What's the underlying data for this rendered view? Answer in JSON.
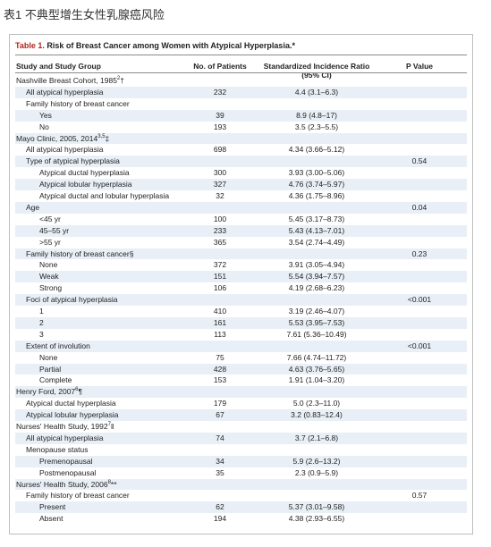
{
  "page_caption": "表1 不典型增生女性乳腺癌风险",
  "table": {
    "label": "Table 1.",
    "title": "Risk of Breast Cancer among Women with Atypical Hyperplasia.*",
    "headers": {
      "study": "Study and Study Group",
      "n": "No. of Patients",
      "sir": "Standardized Incidence Ratio (95% CI)",
      "p": "P Value"
    },
    "rows": [
      {
        "level": 0,
        "label": "Nashville Breast Cohort, 1985",
        "sup": "2",
        "tail": "†",
        "n": "",
        "sir": "",
        "p": ""
      },
      {
        "level": 1,
        "label": "All atypical hyperplasia",
        "sup": "",
        "tail": "",
        "n": "232",
        "sir": "4.4 (3.1–6.3)",
        "p": ""
      },
      {
        "level": 1,
        "label": "Family history of breast cancer",
        "sup": "",
        "tail": "",
        "n": "",
        "sir": "",
        "p": ""
      },
      {
        "level": 2,
        "label": "Yes",
        "sup": "",
        "tail": "",
        "n": "39",
        "sir": "8.9 (4.8–17)",
        "p": ""
      },
      {
        "level": 2,
        "label": "No",
        "sup": "",
        "tail": "",
        "n": "193",
        "sir": "3.5 (2.3–5.5)",
        "p": ""
      },
      {
        "level": 0,
        "label": "Mayo Clinic, 2005, 2014",
        "sup": "3,5",
        "tail": "‡",
        "n": "",
        "sir": "",
        "p": ""
      },
      {
        "level": 1,
        "label": "All atypical hyperplasia",
        "sup": "",
        "tail": "",
        "n": "698",
        "sir": "4.34 (3.66–5.12)",
        "p": ""
      },
      {
        "level": 1,
        "label": "Type of atypical hyperplasia",
        "sup": "",
        "tail": "",
        "n": "",
        "sir": "",
        "p": "0.54"
      },
      {
        "level": 2,
        "label": "Atypical ductal hyperplasia",
        "sup": "",
        "tail": "",
        "n": "300",
        "sir": "3.93 (3.00–5.06)",
        "p": ""
      },
      {
        "level": 2,
        "label": "Atypical lobular hyperplasia",
        "sup": "",
        "tail": "",
        "n": "327",
        "sir": "4.76 (3.74–5.97)",
        "p": ""
      },
      {
        "level": 2,
        "label": "Atypical ductal and lobular hyperplasia",
        "sup": "",
        "tail": "",
        "n": "32",
        "sir": "4.36 (1.75–8.96)",
        "p": ""
      },
      {
        "level": 1,
        "label": "Age",
        "sup": "",
        "tail": "",
        "n": "",
        "sir": "",
        "p": "0.04"
      },
      {
        "level": 2,
        "label": "<45 yr",
        "sup": "",
        "tail": "",
        "n": "100",
        "sir": "5.45 (3.17–8.73)",
        "p": ""
      },
      {
        "level": 2,
        "label": "45–55 yr",
        "sup": "",
        "tail": "",
        "n": "233",
        "sir": "5.43 (4.13–7.01)",
        "p": ""
      },
      {
        "level": 2,
        "label": ">55 yr",
        "sup": "",
        "tail": "",
        "n": "365",
        "sir": "3.54 (2.74–4.49)",
        "p": ""
      },
      {
        "level": 1,
        "label": "Family history of breast cancer§",
        "sup": "",
        "tail": "",
        "n": "",
        "sir": "",
        "p": "0.23"
      },
      {
        "level": 2,
        "label": "None",
        "sup": "",
        "tail": "",
        "n": "372",
        "sir": "3.91 (3.05–4.94)",
        "p": ""
      },
      {
        "level": 2,
        "label": "Weak",
        "sup": "",
        "tail": "",
        "n": "151",
        "sir": "5.54 (3.94–7.57)",
        "p": ""
      },
      {
        "level": 2,
        "label": "Strong",
        "sup": "",
        "tail": "",
        "n": "106",
        "sir": "4.19 (2.68–6.23)",
        "p": ""
      },
      {
        "level": 1,
        "label": "Foci of atypical hyperplasia",
        "sup": "",
        "tail": "",
        "n": "",
        "sir": "",
        "p": "<0.001"
      },
      {
        "level": 2,
        "label": "1",
        "sup": "",
        "tail": "",
        "n": "410",
        "sir": "3.19 (2.46–4.07)",
        "p": ""
      },
      {
        "level": 2,
        "label": "2",
        "sup": "",
        "tail": "",
        "n": "161",
        "sir": "5.53 (3.95–7.53)",
        "p": ""
      },
      {
        "level": 2,
        "label": "3",
        "sup": "",
        "tail": "",
        "n": "113",
        "sir": "7.61 (5.36–10.49)",
        "p": ""
      },
      {
        "level": 1,
        "label": "Extent of involution",
        "sup": "",
        "tail": "",
        "n": "",
        "sir": "",
        "p": "<0.001"
      },
      {
        "level": 2,
        "label": "None",
        "sup": "",
        "tail": "",
        "n": "75",
        "sir": "7.66 (4.74–11.72)",
        "p": ""
      },
      {
        "level": 2,
        "label": "Partial",
        "sup": "",
        "tail": "",
        "n": "428",
        "sir": "4.63 (3.76–5.65)",
        "p": ""
      },
      {
        "level": 2,
        "label": "Complete",
        "sup": "",
        "tail": "",
        "n": "153",
        "sir": "1.91 (1.04–3.20)",
        "p": ""
      },
      {
        "level": 0,
        "label": "Henry Ford, 2007",
        "sup": "6",
        "tail": "¶",
        "n": "",
        "sir": "",
        "p": ""
      },
      {
        "level": 1,
        "label": "Atypical ductal hyperplasia",
        "sup": "",
        "tail": "",
        "n": "179",
        "sir": "5.0 (2.3–11.0)",
        "p": ""
      },
      {
        "level": 1,
        "label": "Atypical lobular hyperplasia",
        "sup": "",
        "tail": "",
        "n": "67",
        "sir": "3.2 (0.83–12.4)",
        "p": ""
      },
      {
        "level": 0,
        "label": "Nurses' Health Study, 1992",
        "sup": "7",
        "tail": "‖",
        "n": "",
        "sir": "",
        "p": ""
      },
      {
        "level": 1,
        "label": "All atypical hyperplasia",
        "sup": "",
        "tail": "",
        "n": "74",
        "sir": "3.7 (2.1–6.8)",
        "p": ""
      },
      {
        "level": 1,
        "label": "Menopause status",
        "sup": "",
        "tail": "",
        "n": "",
        "sir": "",
        "p": ""
      },
      {
        "level": 2,
        "label": "Premenopausal",
        "sup": "",
        "tail": "",
        "n": "34",
        "sir": "5.9 (2.6–13.2)",
        "p": ""
      },
      {
        "level": 2,
        "label": "Postmenopausal",
        "sup": "",
        "tail": "",
        "n": "35",
        "sir": "2.3 (0.9–5.9)",
        "p": ""
      },
      {
        "level": 0,
        "label": "Nurses' Health Study, 2006",
        "sup": "8",
        "tail": "**",
        "n": "",
        "sir": "",
        "p": ""
      },
      {
        "level": 1,
        "label": "Family history of breast cancer",
        "sup": "",
        "tail": "",
        "n": "",
        "sir": "",
        "p": "0.57"
      },
      {
        "level": 2,
        "label": "Present",
        "sup": "",
        "tail": "",
        "n": "62",
        "sir": "5.37 (3.01–9.58)",
        "p": ""
      },
      {
        "level": 2,
        "label": "Absent",
        "sup": "",
        "tail": "",
        "n": "194",
        "sir": "4.38 (2.93–6.55)",
        "p": ""
      }
    ]
  },
  "colors": {
    "row_shade": "#e9eff6",
    "label_red": "#b3261e",
    "rule": "#8a8a8a"
  }
}
